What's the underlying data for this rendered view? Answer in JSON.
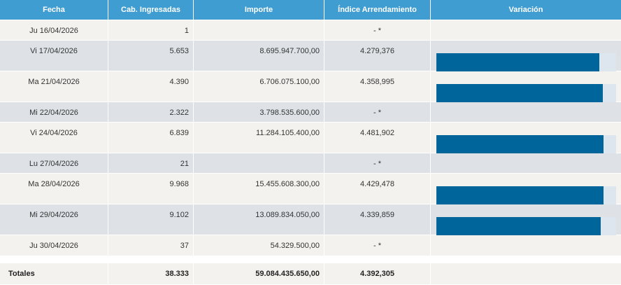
{
  "headers": {
    "fecha": "Fecha",
    "cab": "Cab. Ingresadas",
    "importe": "Importe",
    "indice": "Índice Arrendamiento",
    "variacion": "Variación"
  },
  "rows": [
    {
      "fecha": "Ju 16/04/2026",
      "cab": "1",
      "importe": "",
      "indice": "- *",
      "variacion": null
    },
    {
      "fecha": "Vi 17/04/2026",
      "cab": "5.653",
      "importe": "8.695.947.700,00",
      "indice": "4.279,376",
      "variacion": 0.905
    },
    {
      "fecha": "Ma 21/04/2026",
      "cab": "4.390",
      "importe": "6.706.075.100,00",
      "indice": "4.358,995",
      "variacion": 0.925
    },
    {
      "fecha": "Mi 22/04/2026",
      "cab": "2.322",
      "importe": "3.798.535.600,00",
      "indice": "- *",
      "variacion": null
    },
    {
      "fecha": "Vi 24/04/2026",
      "cab": "6.839",
      "importe": "11.284.105.400,00",
      "indice": "4.481,902",
      "variacion": 0.93
    },
    {
      "fecha": "Lu 27/04/2026",
      "cab": "21",
      "importe": "",
      "indice": "- *",
      "variacion": null
    },
    {
      "fecha": "Ma 28/04/2026",
      "cab": "9.968",
      "importe": "15.455.608.300,00",
      "indice": "4.429,478",
      "variacion": 0.93
    },
    {
      "fecha": "Mi 29/04/2026",
      "cab": "9.102",
      "importe": "13.089.834.050,00",
      "indice": "4.339,859",
      "variacion": 0.915
    },
    {
      "fecha": "Ju 30/04/2026",
      "cab": "37",
      "importe": "54.329.500,00",
      "indice": "- *",
      "variacion": null
    }
  ],
  "totals": {
    "label": "Totales",
    "cab": "38.333",
    "importe": "59.084.435.650,00",
    "indice": "4.392,305"
  },
  "colors": {
    "header_bg": "#3f9dd1",
    "bar_fill": "#00659b",
    "bar_track": "#dde6ee",
    "row_light": "#f3f2ee",
    "row_dark": "#dee2e6"
  }
}
